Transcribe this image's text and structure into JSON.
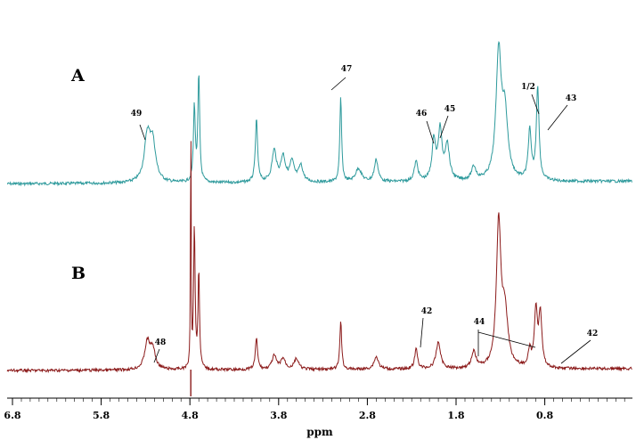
{
  "chart_data": {
    "type": "line",
    "title": "",
    "xlabel": "ppm",
    "ylabel": "",
    "xlim": [
      6.8,
      -0.3
    ],
    "x_reversed": true,
    "grid": false,
    "ticks": [
      {
        "value": 6.8,
        "label": "6.8"
      },
      {
        "value": 5.8,
        "label": "5.8"
      },
      {
        "value": 4.8,
        "label": "4.8"
      },
      {
        "value": 3.8,
        "label": "3.8"
      },
      {
        "value": 2.8,
        "label": "2.8"
      },
      {
        "value": 1.8,
        "label": "1.8"
      },
      {
        "value": 0.8,
        "label": "0.8"
      }
    ],
    "series": [
      {
        "name": "A",
        "color": "#2e9a9c",
        "peaks": [
          {
            "ppm": 5.28,
            "height": 50,
            "width": 0.04
          },
          {
            "ppm": 5.22,
            "height": 42,
            "width": 0.04
          },
          {
            "ppm": 4.75,
            "height": 85,
            "width": 0.012
          },
          {
            "ppm": 4.7,
            "height": 120,
            "width": 0.012
          },
          {
            "ppm": 4.05,
            "height": 70,
            "width": 0.015
          },
          {
            "ppm": 3.85,
            "height": 35,
            "width": 0.03
          },
          {
            "ppm": 3.75,
            "height": 28,
            "width": 0.03
          },
          {
            "ppm": 3.65,
            "height": 22,
            "width": 0.03
          },
          {
            "ppm": 3.55,
            "height": 18,
            "width": 0.03
          },
          {
            "ppm": 3.1,
            "height": 95,
            "width": 0.012
          },
          {
            "ppm": 2.9,
            "height": 15,
            "width": 0.04
          },
          {
            "ppm": 2.7,
            "height": 25,
            "width": 0.025
          },
          {
            "ppm": 2.25,
            "height": 22,
            "width": 0.025
          },
          {
            "ppm": 2.05,
            "height": 45,
            "width": 0.025
          },
          {
            "ppm": 1.98,
            "height": 55,
            "width": 0.025
          },
          {
            "ppm": 1.9,
            "height": 40,
            "width": 0.03
          },
          {
            "ppm": 1.6,
            "height": 15,
            "width": 0.03
          },
          {
            "ppm": 1.32,
            "height": 140,
            "width": 0.035
          },
          {
            "ppm": 1.25,
            "height": 70,
            "width": 0.04
          },
          {
            "ppm": 0.97,
            "height": 55,
            "width": 0.02
          },
          {
            "ppm": 0.88,
            "height": 105,
            "width": 0.018
          }
        ],
        "annotations": [
          {
            "label": "49",
            "ppm": 5.25
          },
          {
            "label": "47",
            "ppm": 3.1
          },
          {
            "label": "46",
            "ppm": 2.05
          },
          {
            "label": "45",
            "ppm": 1.95
          },
          {
            "label": "1/2",
            "ppm": 0.95
          },
          {
            "label": "43",
            "ppm": 0.88
          }
        ]
      },
      {
        "name": "B",
        "color": "#8b1a1a",
        "peaks": [
          {
            "ppm": 5.28,
            "height": 30,
            "width": 0.035
          },
          {
            "ppm": 5.22,
            "height": 22,
            "width": 0.035
          },
          {
            "ppm": 4.79,
            "height": 310,
            "width": 0.004
          },
          {
            "ppm": 4.75,
            "height": 160,
            "width": 0.01
          },
          {
            "ppm": 4.7,
            "height": 110,
            "width": 0.01
          },
          {
            "ppm": 4.05,
            "height": 35,
            "width": 0.015
          },
          {
            "ppm": 3.85,
            "height": 15,
            "width": 0.03
          },
          {
            "ppm": 3.75,
            "height": 12,
            "width": 0.03
          },
          {
            "ppm": 3.6,
            "height": 12,
            "width": 0.03
          },
          {
            "ppm": 3.1,
            "height": 55,
            "width": 0.012
          },
          {
            "ppm": 2.7,
            "height": 14,
            "width": 0.03
          },
          {
            "ppm": 2.25,
            "height": 22,
            "width": 0.02
          },
          {
            "ppm": 2.0,
            "height": 30,
            "width": 0.03
          },
          {
            "ppm": 1.6,
            "height": 18,
            "width": 0.03
          },
          {
            "ppm": 1.32,
            "height": 160,
            "width": 0.03
          },
          {
            "ppm": 1.25,
            "height": 60,
            "width": 0.04
          },
          {
            "ppm": 0.97,
            "height": 18,
            "width": 0.02
          },
          {
            "ppm": 0.9,
            "height": 65,
            "width": 0.02
          },
          {
            "ppm": 0.85,
            "height": 60,
            "width": 0.02
          }
        ],
        "annotations": [
          {
            "label": "48",
            "ppm": 5.15
          },
          {
            "label": "42",
            "ppm": 2.25
          },
          {
            "label": "44",
            "ppm": 1.45
          },
          {
            "label": "42",
            "ppm": 0.72
          }
        ]
      }
    ]
  }
}
